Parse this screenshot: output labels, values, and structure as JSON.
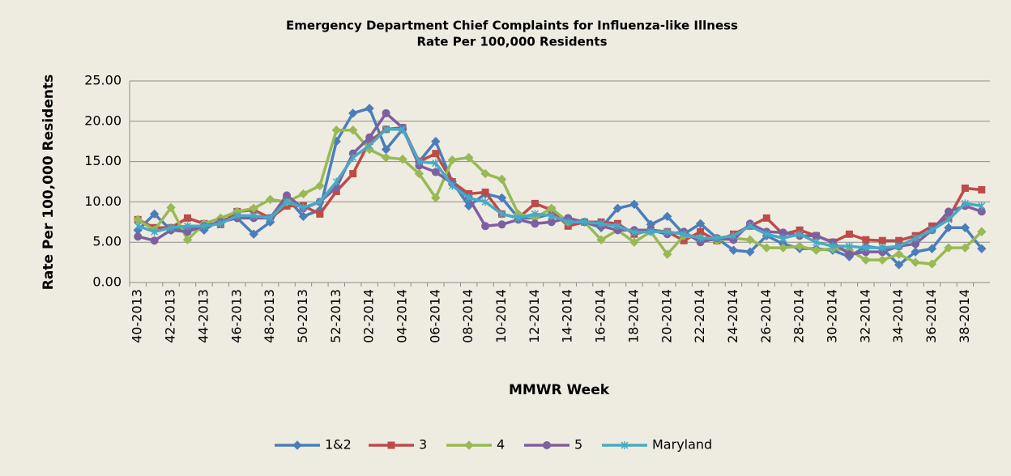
{
  "chart_data": {
    "type": "line",
    "title": "Emergency Department Chief Complaints for Influenza-like Illness",
    "subtitle": "Rate Per 100,000 Residents",
    "x_label": "MMWR Week",
    "y_label": "Rate Per 100,000 Residents",
    "categories": [
      "40-2013",
      null,
      "42-2013",
      null,
      "44-2013",
      null,
      "46-2013",
      null,
      "48-2013",
      null,
      "50-2013",
      null,
      "52-2013",
      null,
      "02-2014",
      null,
      "04-2014",
      null,
      "06-2014",
      null,
      "08-2014",
      null,
      "10-2014",
      null,
      "12-2014",
      null,
      "14-2014",
      null,
      "16-2014",
      null,
      "18-2014",
      null,
      "20-2014",
      null,
      "22-2014",
      null,
      "24-2014",
      null,
      "26-2014",
      null,
      "28-2014",
      null,
      "30-2014",
      null,
      "32-2014",
      null,
      "34-2014",
      null,
      "36-2014",
      null,
      "38-2014",
      null
    ],
    "series": [
      {
        "name": "1&2",
        "color": "#4a7ebb",
        "marker": "diamond",
        "values": [
          6.5,
          8.5,
          6.5,
          6.8,
          6.5,
          7.8,
          8.0,
          6.0,
          7.5,
          10.5,
          8.2,
          9.0,
          17.5,
          21.0,
          21.6,
          16.5,
          19.0,
          15.0,
          17.5,
          12.5,
          9.5,
          11.0,
          10.5,
          8.0,
          8.0,
          8.5,
          7.5,
          7.5,
          6.8,
          9.2,
          9.7,
          7.2,
          8.2,
          6.0,
          7.3,
          5.5,
          4.0,
          3.8,
          5.8,
          4.8,
          4.2,
          4.2,
          4.0,
          3.2,
          4.5,
          4.2,
          2.2,
          3.8,
          4.2,
          6.8,
          6.8,
          4.2
        ]
      },
      {
        "name": "3",
        "color": "#be4b48",
        "marker": "square",
        "values": [
          7.8,
          6.8,
          6.8,
          8.0,
          7.3,
          7.2,
          8.8,
          9.0,
          8.0,
          9.5,
          9.5,
          8.5,
          11.3,
          13.5,
          17.5,
          19.0,
          19.2,
          15.0,
          16.0,
          12.5,
          11.0,
          11.2,
          8.5,
          8.0,
          9.8,
          9.0,
          7.0,
          7.5,
          7.5,
          7.3,
          6.0,
          6.5,
          6.3,
          5.2,
          6.3,
          5.2,
          6.0,
          7.0,
          8.0,
          6.0,
          6.5,
          5.8,
          5.0,
          6.0,
          5.3,
          5.2,
          5.2,
          5.8,
          7.0,
          8.0,
          11.7,
          11.5
        ]
      },
      {
        "name": "4",
        "color": "#98b954",
        "marker": "diamond",
        "values": [
          7.8,
          6.5,
          9.3,
          5.3,
          7.3,
          8.0,
          8.8,
          9.2,
          10.3,
          10.0,
          11.0,
          12.0,
          18.9,
          18.9,
          16.5,
          15.5,
          15.3,
          13.5,
          10.5,
          15.2,
          15.5,
          13.5,
          12.8,
          8.5,
          8.0,
          9.2,
          7.5,
          7.5,
          5.3,
          6.5,
          5.0,
          6.3,
          3.5,
          5.8,
          5.5,
          5.2,
          5.5,
          5.3,
          4.3,
          4.3,
          4.5,
          4.0,
          4.2,
          4.0,
          2.8,
          2.8,
          3.5,
          2.5,
          2.3,
          4.3,
          4.3,
          6.3
        ]
      },
      {
        "name": "5",
        "color": "#7d60a0",
        "marker": "circle",
        "values": [
          5.7,
          5.2,
          6.5,
          6.3,
          7.0,
          7.5,
          8.0,
          8.0,
          8.0,
          10.8,
          9.2,
          10.0,
          11.8,
          16.0,
          18.0,
          21.0,
          19.2,
          14.5,
          13.7,
          12.3,
          10.5,
          7.0,
          7.2,
          7.8,
          7.3,
          7.5,
          8.0,
          7.5,
          7.0,
          6.5,
          6.5,
          6.5,
          6.0,
          6.3,
          5.0,
          5.5,
          5.3,
          7.3,
          6.3,
          6.2,
          5.8,
          5.8,
          5.0,
          3.5,
          3.8,
          3.8,
          4.5,
          4.8,
          6.5,
          8.8,
          9.5,
          8.8
        ]
      },
      {
        "name": "Maryland",
        "color": "#46aac5",
        "marker": "star",
        "values": [
          7.0,
          6.3,
          6.8,
          7.0,
          7.0,
          7.3,
          8.3,
          8.3,
          8.0,
          10.0,
          9.3,
          10.0,
          12.5,
          15.5,
          17.0,
          19.0,
          19.0,
          15.0,
          14.8,
          12.0,
          10.5,
          10.0,
          8.5,
          8.0,
          8.5,
          8.3,
          7.5,
          7.5,
          7.3,
          7.0,
          6.2,
          6.3,
          6.3,
          6.0,
          5.5,
          5.5,
          5.8,
          7.0,
          6.0,
          5.5,
          6.0,
          5.0,
          4.5,
          4.5,
          4.3,
          4.3,
          4.5,
          5.5,
          6.5,
          7.8,
          9.8,
          9.5
        ]
      }
    ],
    "ylim": [
      0,
      25
    ],
    "yticks": [
      {
        "value": 0,
        "label": "0.00"
      },
      {
        "value": 5,
        "label": "5.00"
      },
      {
        "value": 10,
        "label": "10.00"
      },
      {
        "value": 15,
        "label": "15.00"
      },
      {
        "value": 20,
        "label": "20.00"
      },
      {
        "value": 25,
        "label": "25.00"
      }
    ],
    "grid": true,
    "legend": "bottom"
  }
}
